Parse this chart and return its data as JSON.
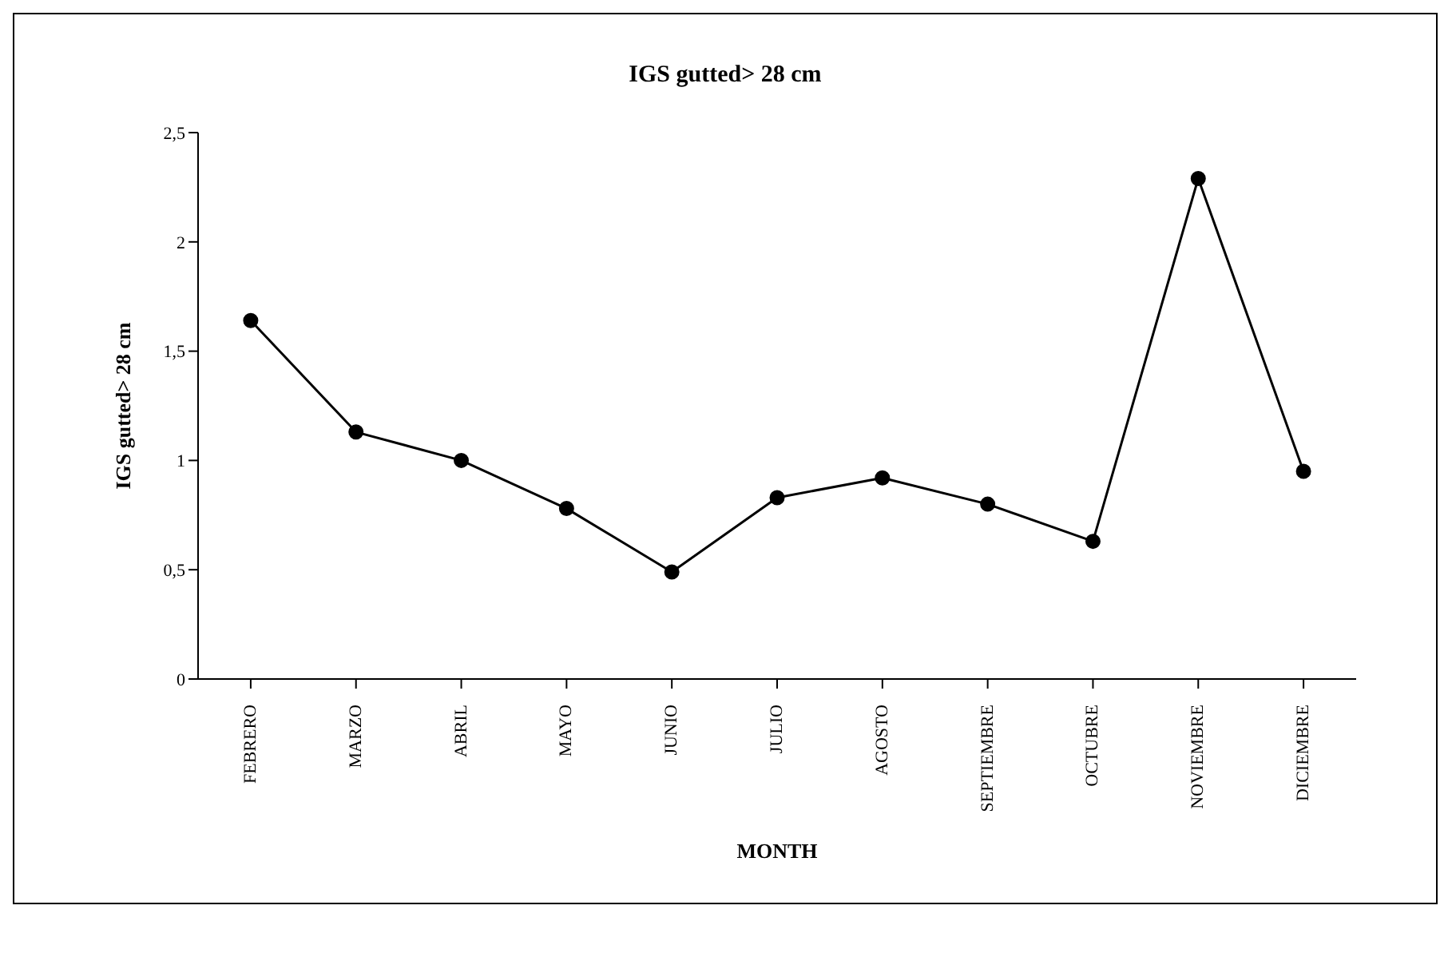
{
  "chart_data": {
    "type": "line",
    "title": "IGS gutted> 28 cm",
    "xlabel": "MONTH",
    "ylabel": "IGS gutted> 28 cm",
    "categories": [
      "FEBRERO",
      "MARZO",
      "ABRIL",
      "MAYO",
      "JUNIO",
      "JULIO",
      "AGOSTO",
      "SEPTIEMBRE",
      "OCTUBRE",
      "NOVIEMBRE",
      "DICIEMBRE"
    ],
    "series": [
      {
        "color": "#000000",
        "values": [
          1.64,
          1.13,
          1.0,
          0.78,
          0.49,
          0.83,
          0.92,
          0.8,
          0.63,
          2.29,
          0.95
        ]
      }
    ],
    "ylim": [
      0,
      2.5
    ],
    "yticks": [
      0,
      {
        "value": 0.5,
        "label": "0,5"
      },
      1,
      {
        "value": 1.5,
        "label": "1,5"
      },
      2,
      {
        "value": 2.5,
        "label": "2,5"
      }
    ],
    "grid": false,
    "legend": false,
    "marker": "circle",
    "line_style": "solid"
  }
}
